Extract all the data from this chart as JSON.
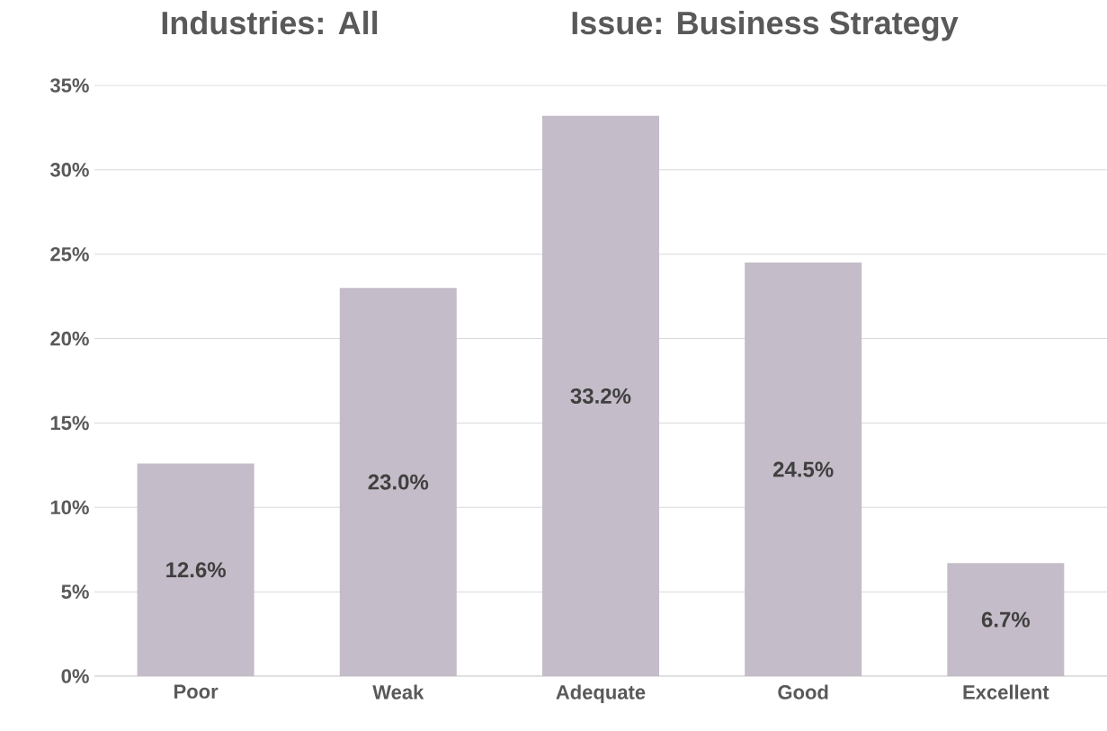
{
  "chart_data": {
    "type": "bar",
    "title": "Industries: All",
    "subtitle": "Issue: Business Strategy",
    "categories": [
      "Poor",
      "Weak",
      "Adequate",
      "Good",
      "Excellent"
    ],
    "values": [
      12.6,
      23.0,
      33.2,
      24.5,
      6.7
    ],
    "value_labels": [
      "12.6%",
      "23.0%",
      "33.2%",
      "24.5%",
      "6.7%"
    ],
    "color": "#c4bcc8",
    "ylim": [
      0,
      35
    ],
    "yticks": [
      {
        "value": 0,
        "label": "0%"
      },
      {
        "value": 5,
        "label": "5%"
      },
      {
        "value": 10,
        "label": "10%"
      },
      {
        "value": 15,
        "label": "15%"
      },
      {
        "value": 20,
        "label": "20%"
      },
      {
        "value": 25,
        "label": "25%"
      },
      {
        "value": 30,
        "label": "30%"
      },
      {
        "value": 35,
        "label": "35%"
      }
    ],
    "grid": "y"
  }
}
